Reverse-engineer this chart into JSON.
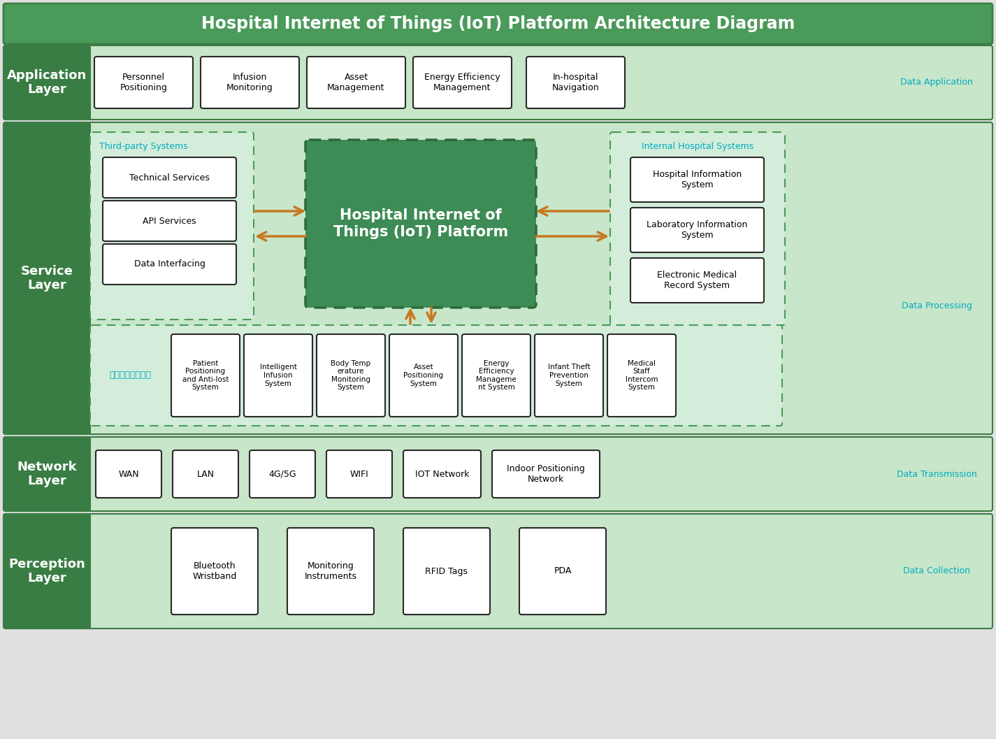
{
  "title": "Hospital Internet of Things (IoT) Platform Architecture Diagram",
  "bg_color": "#e0e0e0",
  "dark_green": "#3a7d44",
  "mid_green": "#4a9a5a",
  "light_green": "#c8e6c9",
  "lighter_green": "#d4edda",
  "white": "#ffffff",
  "arrow_color": "#c87820",
  "cyan_label": "#00acc1",
  "box_edge": "#2a2a2a",
  "app_items": [
    "Personnel\nPositioning",
    "Infusion\nMonitoring",
    "Asset\nManagement",
    "Energy Efficiency\nManagement",
    "In-hospital\nNavigation"
  ],
  "app_label": "Data Application",
  "network_items": [
    "WAN",
    "LAN",
    "4G/5G",
    "WIFI",
    "IOT Network",
    "Indoor Positioning\nNetwork"
  ],
  "network_label": "Data Transmission",
  "perception_items": [
    "Bluetooth\nWristband",
    "Monitoring\nInstruments",
    "RFID Tags",
    "PDA"
  ],
  "perception_label": "Data Collection",
  "third_party_label": "Third-party Systems",
  "third_party_items": [
    "Technical Services",
    "API Services",
    "Data Interfacing"
  ],
  "internal_label": "Internal Hospital Systems",
  "internal_items": [
    "Hospital Information\nSystem",
    "Laboratory Information\nSystem",
    "Electronic Medical\nRecord System"
  ],
  "iot_platform_text": "Hospital Internet of\nThings (IoT) Platform",
  "smart_hospital_label": "智慧医院应用系统",
  "data_processing_label": "Data Processing",
  "smart_items": [
    "Patient\nPositioning\nand Anti-lost\nSystem",
    "Intelligent\nInfusion\nSystem",
    "Body Temp\nerature\nMonitoring\nSystem",
    "Asset\nPositioning\nSystem",
    "Energy\nEfficiency\nManageme\nnt System",
    "Infant Theft\nPrevention\nSystem",
    "Medical\nStaff\nIntercom\nSystem"
  ]
}
